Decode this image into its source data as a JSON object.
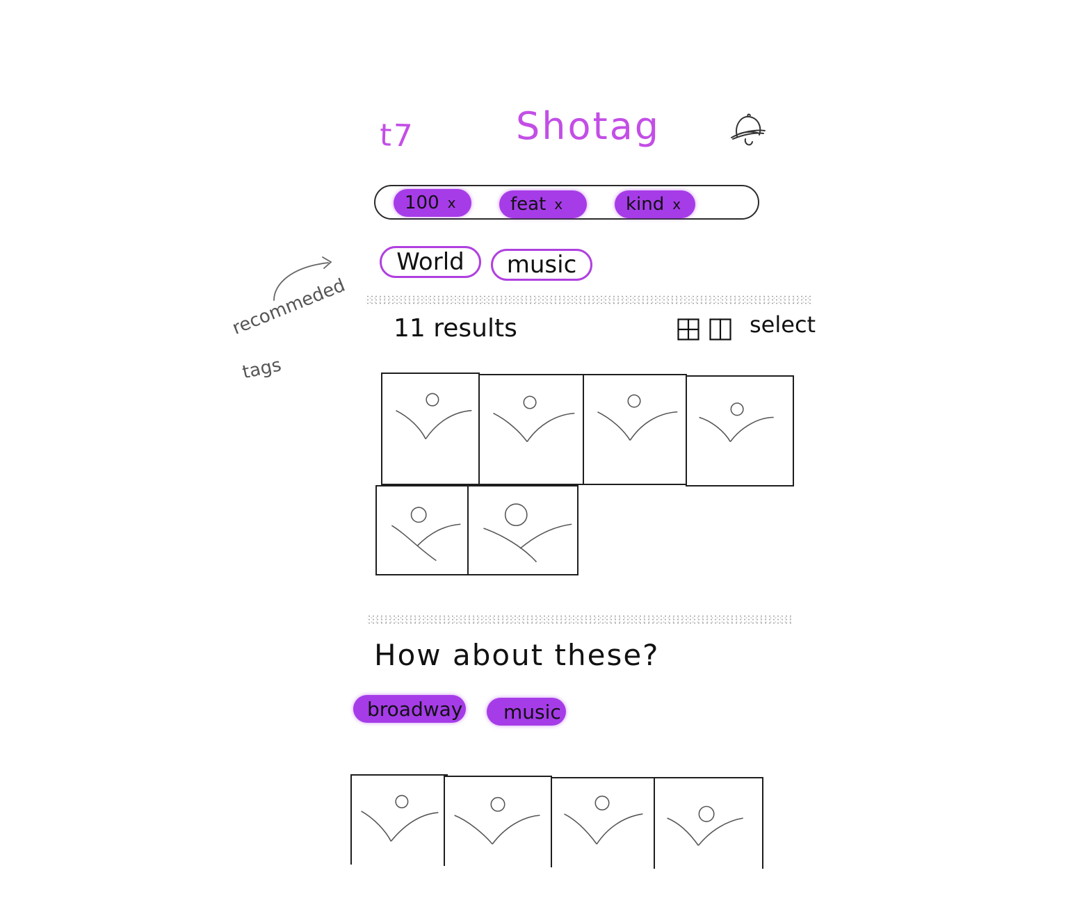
{
  "header": {
    "logo_text": "t7",
    "title": "Shotag",
    "bell_icon": "bell-icon"
  },
  "search": {
    "chips": [
      {
        "label": "100",
        "remove": "x"
      },
      {
        "label": "feat",
        "remove": "x"
      },
      {
        "label": "kind",
        "remove": "x"
      }
    ]
  },
  "recommended": {
    "annotation_line1": "recommeded",
    "annotation_line2": "tags",
    "tags": [
      "World",
      "music"
    ]
  },
  "results": {
    "count_label": "11 results",
    "grid_view_icon": "grid-view-icon",
    "split_view_icon": "split-view-icon",
    "select_label": "select"
  },
  "suggestions": {
    "heading": "How about these?",
    "tags": [
      "broadway",
      "music"
    ]
  },
  "colors": {
    "accent": "#c34ee6",
    "chip_fill": "#a63ce8",
    "ink": "#111111"
  }
}
